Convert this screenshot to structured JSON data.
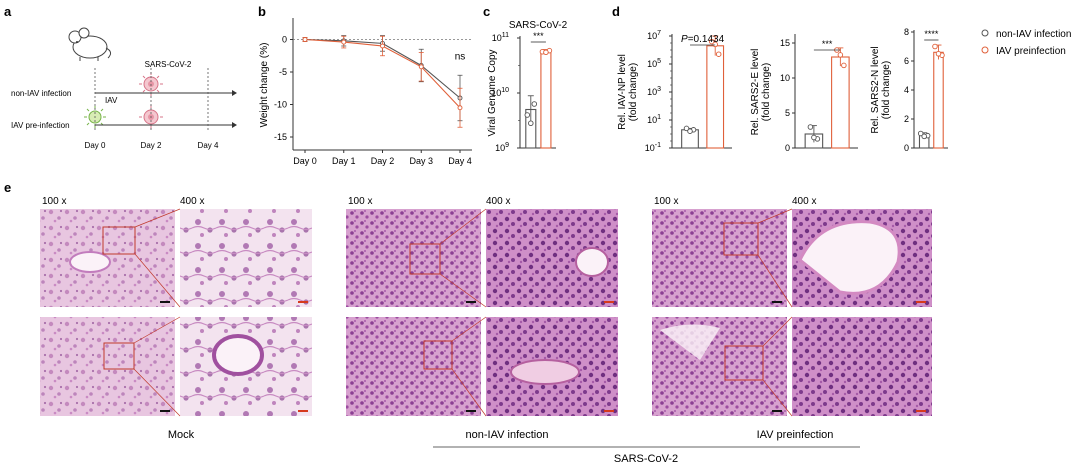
{
  "panel_letters": {
    "a": "a",
    "b": "b",
    "c": "c",
    "d": "d",
    "e": "e"
  },
  "panel_a": {
    "virus_label": "SARS-CoV-2",
    "iav_label": "IAV",
    "row1_label": "non-IAV infection",
    "row2_label": "IAV pre-infection",
    "days": [
      "Day 0",
      "Day 2",
      "Day 4"
    ]
  },
  "legend": {
    "items": [
      {
        "label": "non-IAV infection",
        "color": "#555555"
      },
      {
        "label": "IAV preinfection",
        "color": "#e0603a"
      }
    ]
  },
  "histology": {
    "mag_low": "100 x",
    "mag_high": "400 x",
    "group_labels": [
      "Mock",
      "non-IAV infection",
      "IAV preinfection"
    ],
    "shared_label": "SARS-CoV-2"
  },
  "colors": {
    "grey": "#555555",
    "orange": "#e0603a",
    "tissue_pink": "#d89ac6",
    "tissue_purple": "#9a4a9c"
  },
  "chart_data": [
    {
      "id": "b",
      "type": "line",
      "ylabel": "Weight change (%)",
      "categories": [
        "Day 0",
        "Day 1",
        "Day 2",
        "Day 3",
        "Day 4"
      ],
      "yticks": [
        "0",
        "-5",
        "-10",
        "-15"
      ],
      "ylim": [
        -17,
        3
      ],
      "annotations": [
        "ns"
      ],
      "series": [
        {
          "name": "non-IAV infection",
          "values": [
            0,
            -0.2,
            -0.6,
            -4.0,
            -9.0
          ],
          "errors": [
            0.3,
            0.8,
            1.2,
            2.5,
            3.5
          ]
        },
        {
          "name": "IAV preinfection",
          "values": [
            0,
            -0.4,
            -1.0,
            -4.2,
            -10.5
          ],
          "errors": [
            0.3,
            0.9,
            1.5,
            2.2,
            3.0
          ]
        }
      ]
    },
    {
      "id": "c",
      "type": "bar",
      "title": "SARS-CoV-2",
      "ylabel": "Viral Genome Copy",
      "yticks": [
        "10",
        "10",
        "10"
      ],
      "yexp": [
        "9",
        "10",
        "11"
      ],
      "log_scale": true,
      "annotations": [
        "***"
      ],
      "bars": [
        {
          "name": "non-IAV infection",
          "log_value": 9.7,
          "log_err": 0.25,
          "points": [
            9.6,
            9.8,
            9.45
          ]
        },
        {
          "name": "IAV preinfection",
          "log_value": 10.75,
          "log_err": 0.04,
          "points": [
            10.75,
            10.77,
            10.74
          ]
        }
      ]
    },
    {
      "id": "d1",
      "type": "bar",
      "ylabel": "Rel. IAV-NP level (fold change)",
      "yticks": [
        "10",
        "10",
        "10",
        "10",
        "10"
      ],
      "yexp": [
        "-1",
        "1",
        "3",
        "5",
        "7"
      ],
      "log_scale": true,
      "annotations": [
        "P=0.1434"
      ],
      "bars": [
        {
          "name": "non-IAV infection",
          "log_value": 0.3,
          "log_err": 0.1,
          "points": [
            0.4,
            0.3,
            0.2
          ]
        },
        {
          "name": "IAV preinfection",
          "log_value": 6.3,
          "log_err": 0.7,
          "points": [
            6.6,
            5.7,
            6.4
          ]
        }
      ]
    },
    {
      "id": "d2",
      "type": "bar",
      "ylabel": "Rel. SARS2-E level (fold change)",
      "yticks": [
        "0",
        "5",
        "10",
        "15"
      ],
      "ylim": [
        0,
        16
      ],
      "annotations": [
        "***"
      ],
      "bars": [
        {
          "name": "non-IAV infection",
          "value": 2.0,
          "err": 1.2,
          "points": [
            3.0,
            1.3,
            1.5
          ]
        },
        {
          "name": "IAV preinfection",
          "value": 13.0,
          "err": 1.3,
          "points": [
            14.0,
            11.8,
            13.3
          ]
        }
      ]
    },
    {
      "id": "d3",
      "type": "bar",
      "ylabel": "Rel. SARS2-N level (fold change)",
      "yticks": [
        "0",
        "2",
        "4",
        "6",
        "8"
      ],
      "ylim": [
        0,
        8
      ],
      "annotations": [
        "****"
      ],
      "bars": [
        {
          "name": "non-IAV infection",
          "value": 0.9,
          "err": 0.15,
          "points": [
            1.0,
            0.85,
            0.8
          ]
        },
        {
          "name": "IAV preinfection",
          "value": 6.6,
          "err": 0.5,
          "points": [
            7.0,
            6.4,
            6.5
          ]
        }
      ]
    }
  ]
}
